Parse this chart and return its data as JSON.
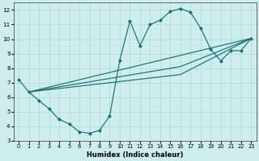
{
  "xlabel": "Humidex (Indice chaleur)",
  "bg_color": "#ceeeed",
  "line_color": "#1a7070",
  "grid_color": "#aed8d8",
  "xlim": [
    -0.5,
    23.5
  ],
  "ylim": [
    3.0,
    12.5
  ],
  "xticks": [
    0,
    1,
    2,
    3,
    4,
    5,
    6,
    7,
    8,
    9,
    10,
    11,
    12,
    13,
    14,
    15,
    16,
    17,
    18,
    19,
    20,
    21,
    22,
    23
  ],
  "yticks": [
    3,
    4,
    5,
    6,
    7,
    8,
    9,
    10,
    11,
    12
  ],
  "main_line": {
    "x": [
      0,
      1,
      2,
      3,
      4,
      5,
      6,
      7,
      8,
      9,
      10,
      11,
      12,
      13,
      14,
      15,
      16,
      17,
      18,
      19,
      20,
      21,
      22,
      23
    ],
    "y": [
      7.2,
      6.35,
      5.75,
      5.2,
      4.45,
      4.15,
      3.6,
      3.5,
      3.7,
      4.7,
      8.55,
      11.25,
      9.55,
      11.0,
      11.3,
      11.9,
      12.1,
      11.85,
      10.75,
      9.3,
      8.5,
      9.2,
      9.2,
      10.05
    ]
  },
  "straight_lines": [
    {
      "x": [
        1,
        23
      ],
      "y": [
        6.35,
        10.05
      ]
    },
    {
      "x": [
        1,
        16,
        23
      ],
      "y": [
        6.35,
        7.55,
        10.05
      ]
    },
    {
      "x": [
        1,
        16,
        23
      ],
      "y": [
        6.35,
        8.1,
        10.05
      ]
    }
  ]
}
